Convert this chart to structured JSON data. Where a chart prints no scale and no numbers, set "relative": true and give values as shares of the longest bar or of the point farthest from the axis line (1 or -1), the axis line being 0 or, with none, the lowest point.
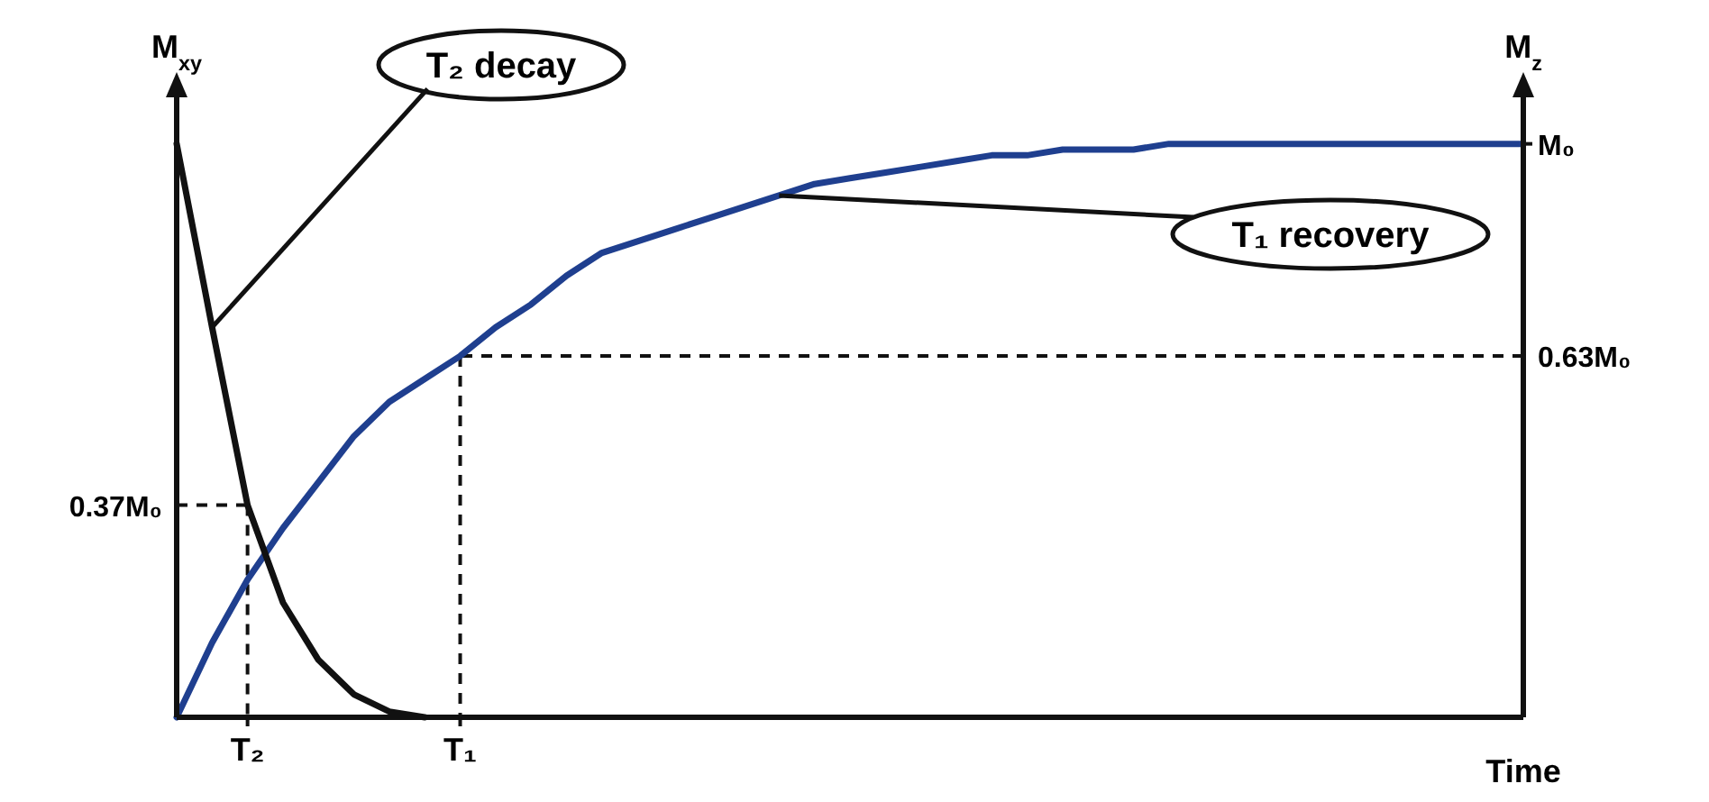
{
  "chart_data": {
    "type": "line",
    "relative": true,
    "xlabel": "Time",
    "ylabel": "M$_{xy}$",
    "y2label": "M$_{z}$",
    "marker": "none",
    "categories": [
      null,
      null,
      "T₂",
      null,
      null,
      null,
      null,
      null,
      "T₁",
      null,
      null,
      null,
      null,
      null,
      null,
      null,
      null,
      null,
      null,
      null,
      null,
      null,
      null,
      null,
      null,
      null,
      null,
      null,
      null,
      null,
      null,
      null,
      null,
      null,
      null,
      null,
      null,
      null,
      null
    ],
    "series": [
      {
        "color": "#1f3f8f",
        "values": [
          0,
          0.13,
          0.24,
          0.33,
          0.41,
          0.49,
          0.55,
          0.59,
          0.63,
          0.68,
          0.72,
          0.77,
          0.81,
          0.83,
          0.85,
          0.87,
          0.89,
          0.91,
          0.93,
          0.94,
          0.95,
          0.96,
          0.97,
          0.98,
          0.98,
          0.99,
          0.99,
          0.99,
          1.0,
          1.0,
          1.0,
          1.0,
          1.0,
          1.0,
          1.0,
          1.0,
          1.0,
          1.0,
          1.0
        ]
      },
      {
        "color": "#111111",
        "values": [
          1.0,
          0.68,
          0.37,
          0.2,
          0.1,
          0.04,
          0.01,
          0,
          null,
          null,
          null,
          null,
          null,
          null,
          null,
          null,
          null,
          null,
          null,
          null,
          null,
          null,
          null,
          null,
          null,
          null,
          null,
          null,
          null,
          null,
          null,
          null,
          null,
          null,
          null,
          null,
          null,
          null,
          null
        ]
      }
    ],
    "ref_lines": [
      {
        "axis": "y",
        "value": 0.37,
        "label": "0.37M₀",
        "line_style": "dashed"
      },
      {
        "axis": "y",
        "value": 0.63,
        "label": "0.63M₀",
        "line_style": "dashed"
      },
      {
        "axis": "x",
        "value": "T₂",
        "line_style": "dashed"
      },
      {
        "axis": "x",
        "value": "T₁",
        "line_style": "dashed"
      }
    ],
    "annotations": [
      "T₂ decay",
      "T₁ recovery",
      "M₀"
    ]
  }
}
